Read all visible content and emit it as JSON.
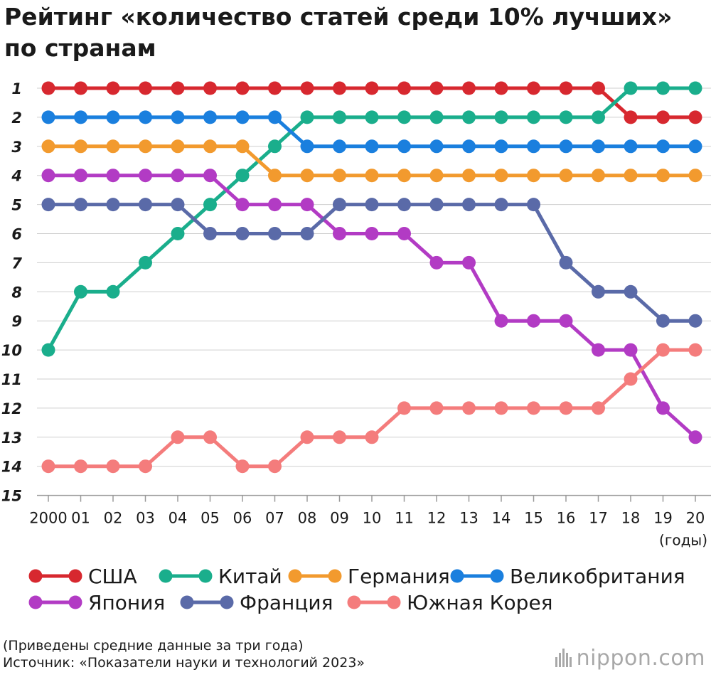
{
  "title_lines": [
    "Рейтинг «количество статей среди 10% лучших»",
    "по странам"
  ],
  "notes": [
    "(Приведены средние данные за три года)",
    "Источник: «Показатели науки и технологий 2023»"
  ],
  "brand": "nippon.com",
  "chart_data": {
    "type": "line",
    "title": "Рейтинг «количество статей среди 10% лучших» по странам",
    "x": [
      "2000",
      "01",
      "02",
      "03",
      "04",
      "05",
      "06",
      "07",
      "08",
      "09",
      "10",
      "11",
      "12",
      "13",
      "14",
      "15",
      "16",
      "17",
      "18",
      "19",
      "20"
    ],
    "x_unit": "(годы)",
    "y_ticks": [
      "1",
      "2",
      "3",
      "4",
      "5",
      "6",
      "7",
      "8",
      "9",
      "10",
      "11",
      "12",
      "13",
      "14",
      "15"
    ],
    "ylim": [
      1,
      15
    ],
    "y_inverted": true,
    "grid": true,
    "legend_position": "bottom",
    "series": [
      {
        "name": "США",
        "color": "#d7282f",
        "values": [
          1,
          1,
          1,
          1,
          1,
          1,
          1,
          1,
          1,
          1,
          1,
          1,
          1,
          1,
          1,
          1,
          1,
          1,
          2,
          2,
          2
        ]
      },
      {
        "name": "Китай",
        "color": "#1aae8c",
        "values": [
          10,
          8,
          8,
          7,
          6,
          5,
          4,
          3,
          2,
          2,
          2,
          2,
          2,
          2,
          2,
          2,
          2,
          2,
          1,
          1,
          1
        ]
      },
      {
        "name": "Германия",
        "color": "#f29a2e",
        "values": [
          3,
          3,
          3,
          3,
          3,
          3,
          3,
          4,
          4,
          4,
          4,
          4,
          4,
          4,
          4,
          4,
          4,
          4,
          4,
          4,
          4
        ]
      },
      {
        "name": "Великобритания",
        "color": "#1a7fde",
        "values": [
          2,
          2,
          2,
          2,
          2,
          2,
          2,
          2,
          3,
          3,
          3,
          3,
          3,
          3,
          3,
          3,
          3,
          3,
          3,
          3,
          3
        ]
      },
      {
        "name": "Япония",
        "color": "#b23bc4",
        "values": [
          4,
          4,
          4,
          4,
          4,
          4,
          5,
          5,
          5,
          6,
          6,
          6,
          7,
          7,
          9,
          9,
          9,
          10,
          10,
          12,
          13
        ]
      },
      {
        "name": "Франция",
        "color": "#5a6aa8",
        "values": [
          5,
          5,
          5,
          5,
          5,
          6,
          6,
          6,
          6,
          5,
          5,
          5,
          5,
          5,
          5,
          5,
          7,
          8,
          8,
          9,
          9
        ]
      },
      {
        "name": "Южная Корея",
        "color": "#f47c7c",
        "values": [
          14,
          14,
          14,
          14,
          13,
          13,
          14,
          14,
          13,
          13,
          13,
          12,
          12,
          12,
          12,
          12,
          12,
          12,
          11,
          10,
          10
        ]
      }
    ]
  }
}
